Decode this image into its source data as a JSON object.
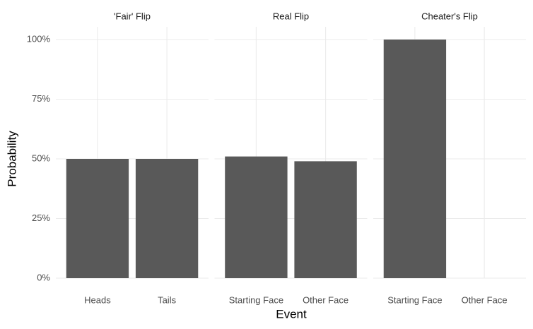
{
  "chart_data": {
    "type": "bar",
    "xlabel": "Event",
    "ylabel": "Probability",
    "color": "#595959",
    "grid": true,
    "ylim": [
      0,
      100
    ],
    "yticks": [
      {
        "value": 0,
        "label": "0%"
      },
      {
        "value": 25,
        "label": "25%"
      },
      {
        "value": 50,
        "label": "50%"
      },
      {
        "value": 75,
        "label": "75%"
      },
      {
        "value": 100,
        "label": "100%"
      }
    ],
    "facets": [
      {
        "title": "'Fair' Flip",
        "categories": [
          "Heads",
          "Tails"
        ],
        "values": [
          50,
          50
        ]
      },
      {
        "title": "Real Flip",
        "categories": [
          "Starting Face",
          "Other Face"
        ],
        "values": [
          51,
          49
        ]
      },
      {
        "title": "Cheater's Flip",
        "categories": [
          "Starting Face",
          "Other Face"
        ],
        "values": [
          100,
          0
        ]
      }
    ]
  }
}
